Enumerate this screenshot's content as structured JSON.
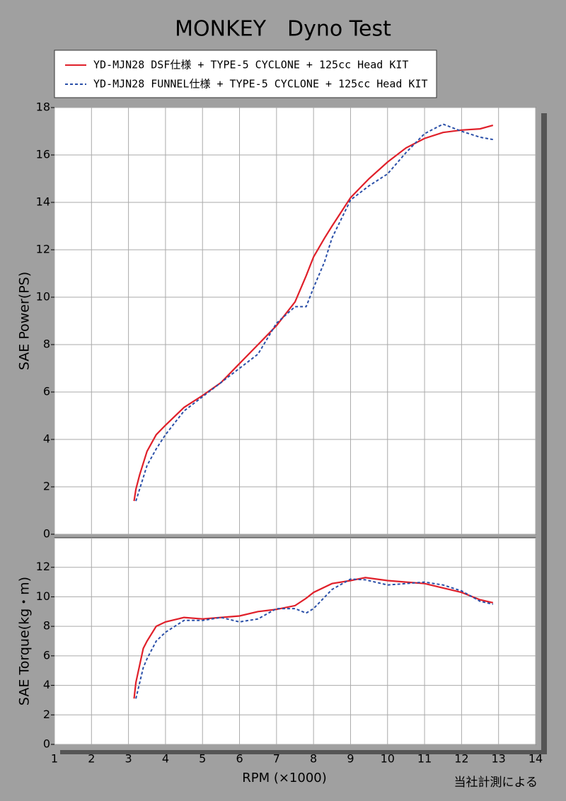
{
  "chart_data": [
    {
      "type": "line",
      "title": "MONKEY　Dyno Test",
      "ylabel": "SAE Power(PS)",
      "x": [
        3.15,
        3.2,
        3.3,
        3.5,
        3.75,
        4,
        4.5,
        5,
        5.5,
        6,
        6.5,
        7,
        7.5,
        7.8,
        8,
        8.3,
        8.5,
        9,
        9.5,
        10,
        10.5,
        11,
        11.5,
        12,
        12.5,
        12.85
      ],
      "series": [
        {
          "name": "YD-MJN28 DSF仕様 + TYPE-5 CYCLONE + 125cc Head KIT",
          "color": "#e0202a",
          "dash": false,
          "values": [
            1.4,
            1.9,
            2.5,
            3.5,
            4.2,
            4.6,
            5.35,
            5.85,
            6.4,
            7.2,
            8.0,
            8.8,
            9.8,
            10.9,
            11.7,
            12.5,
            13.0,
            14.2,
            15.0,
            15.7,
            16.3,
            16.7,
            16.95,
            17.05,
            17.1,
            17.25
          ]
        },
        {
          "name": "YD-MJN28 FUNNEL仕様 + TYPE-5 CYCLONE + 125cc Head KIT",
          "color": "#2a4fa8",
          "dash": true,
          "values": [
            null,
            1.4,
            1.9,
            2.9,
            3.6,
            4.2,
            5.2,
            5.8,
            6.4,
            7.0,
            7.6,
            8.9,
            9.6,
            9.6,
            10.4,
            11.5,
            12.5,
            14.1,
            14.7,
            15.2,
            16.1,
            16.9,
            17.3,
            17.0,
            16.75,
            16.65
          ]
        }
      ],
      "xlim": [
        1,
        14
      ],
      "xticks": [
        1,
        2,
        3,
        4,
        5,
        6,
        7,
        8,
        9,
        10,
        11,
        12,
        13,
        14
      ],
      "ylim": [
        0,
        18
      ],
      "yticks": [
        0,
        2,
        4,
        6,
        8,
        10,
        12,
        14,
        16,
        18
      ],
      "grid": true
    },
    {
      "type": "line",
      "ylabel": "SAE Torque(kg・m)",
      "xlabel": "RPM (×1000)",
      "annotation": "当社計測による",
      "x": [
        3.15,
        3.2,
        3.4,
        3.5,
        3.75,
        4,
        4.5,
        5,
        5.5,
        6,
        6.5,
        7,
        7.5,
        7.8,
        8,
        8.5,
        9,
        9.4,
        10,
        10.5,
        11,
        11.5,
        12,
        12.5,
        12.85
      ],
      "series": [
        {
          "color": "#e0202a",
          "dash": false,
          "values": [
            3.1,
            4.2,
            6.5,
            7.0,
            8.0,
            8.3,
            8.6,
            8.5,
            8.6,
            8.7,
            9.0,
            9.15,
            9.4,
            9.9,
            10.3,
            10.9,
            11.1,
            11.3,
            11.1,
            11.0,
            10.9,
            10.6,
            10.3,
            9.8,
            9.6
          ]
        },
        {
          "color": "#2a4fa8",
          "dash": true,
          "values": [
            null,
            3.1,
            5.2,
            5.8,
            7.0,
            7.6,
            8.4,
            8.4,
            8.6,
            8.3,
            8.5,
            9.2,
            9.2,
            8.9,
            9.2,
            10.5,
            11.2,
            11.15,
            10.8,
            10.9,
            11.0,
            10.8,
            10.4,
            9.7,
            9.5
          ]
        }
      ],
      "xlim": [
        1,
        14
      ],
      "xticks": [
        1,
        2,
        3,
        4,
        5,
        6,
        7,
        8,
        9,
        10,
        11,
        12,
        13,
        14
      ],
      "ylim": [
        0,
        14
      ],
      "yticks": [
        0,
        2,
        4,
        6,
        8,
        10,
        12
      ],
      "grid": true
    }
  ]
}
